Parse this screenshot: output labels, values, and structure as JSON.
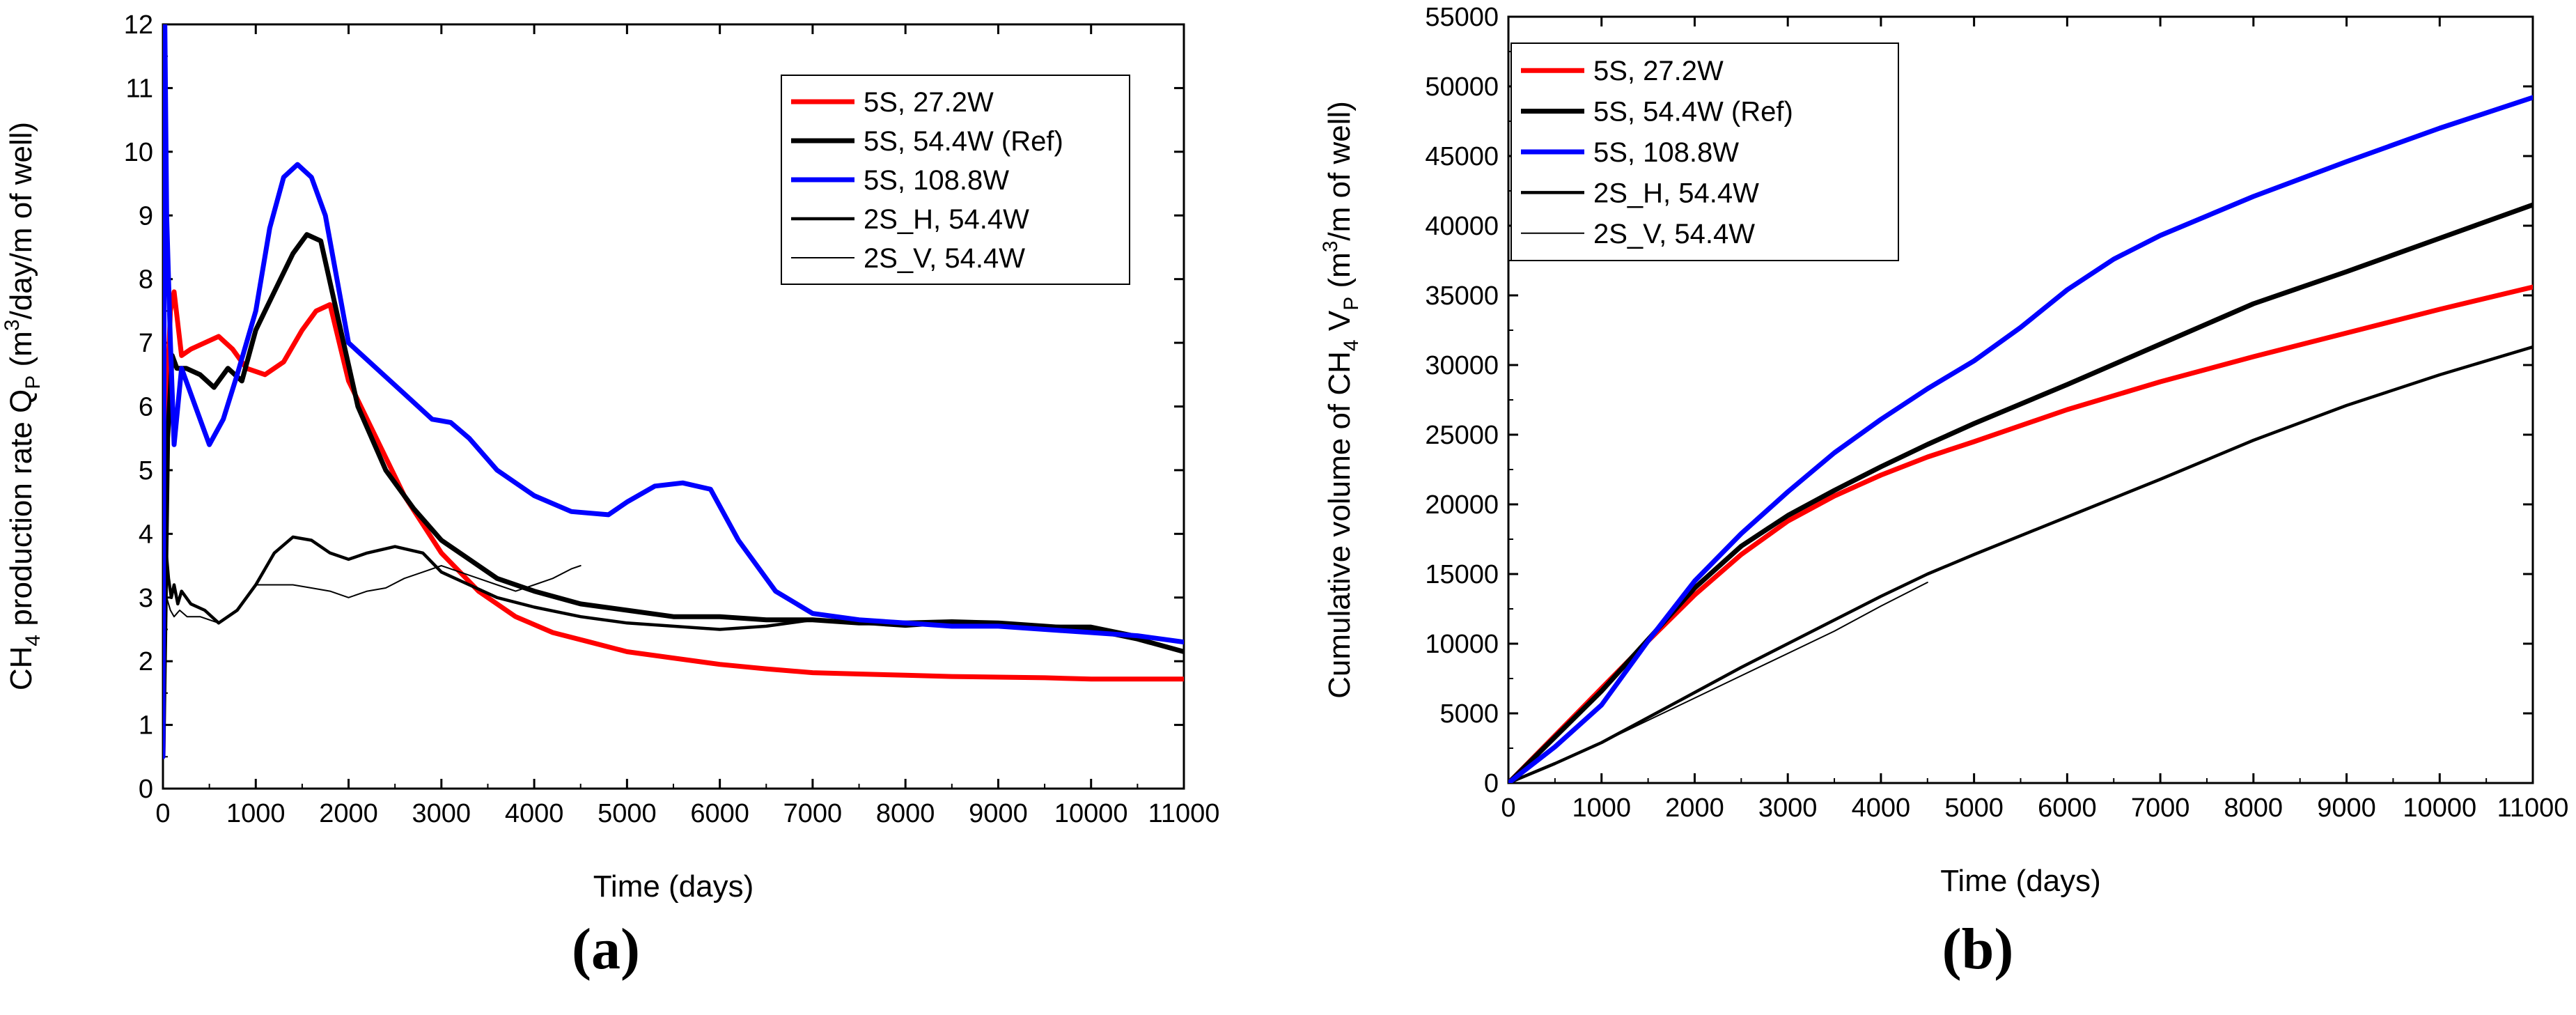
{
  "chart_data": [
    {
      "type": "line",
      "panel_label": "(a)",
      "xlabel": "Time (days)",
      "ylabel": {
        "base": "CH",
        "sub1": "4",
        "mid": " production rate Q",
        "sub2": "P",
        "open": " (m",
        "sup": "3",
        "close": "/day/m of well)"
      },
      "xlim": [
        0,
        11000
      ],
      "ylim": [
        0,
        12
      ],
      "xticks": [
        0,
        1000,
        2000,
        3000,
        4000,
        5000,
        6000,
        7000,
        8000,
        9000,
        10000,
        11000
      ],
      "yticks": [
        0,
        1,
        2,
        3,
        4,
        5,
        6,
        7,
        8,
        9,
        10,
        11,
        12
      ],
      "legend_position": "top-right",
      "series": [
        {
          "name": "5S, 27.2W",
          "color": "#ff0000",
          "weight": "thick",
          "x": [
            0,
            40,
            80,
            120,
            200,
            300,
            450,
            600,
            750,
            900,
            1100,
            1300,
            1500,
            1650,
            1800,
            2000,
            2300,
            2600,
            3000,
            3400,
            3800,
            4200,
            4600,
            5000,
            5500,
            6000,
            6500,
            7000,
            7500,
            8000,
            8500,
            9000,
            9500,
            10000,
            10500,
            11000
          ],
          "y": [
            0.5,
            6.0,
            7.5,
            7.8,
            6.8,
            6.9,
            7.0,
            7.1,
            6.9,
            6.6,
            6.5,
            6.7,
            7.2,
            7.5,
            7.6,
            6.4,
            5.5,
            4.6,
            3.7,
            3.1,
            2.7,
            2.45,
            2.3,
            2.15,
            2.05,
            1.95,
            1.88,
            1.82,
            1.8,
            1.78,
            1.76,
            1.75,
            1.74,
            1.72,
            1.72,
            1.72
          ]
        },
        {
          "name": "5S, 54.4W (Ref)",
          "color": "#000000",
          "weight": "thick",
          "x": [
            0,
            50,
            100,
            150,
            250,
            400,
            550,
            700,
            850,
            1000,
            1200,
            1400,
            1550,
            1700,
            1900,
            2100,
            2400,
            2700,
            3000,
            3300,
            3600,
            4000,
            4500,
            5000,
            5500,
            6000,
            6500,
            7000,
            7500,
            8000,
            8500,
            9000,
            9500,
            10000,
            10500,
            11000
          ],
          "y": [
            0.5,
            5.5,
            6.8,
            6.6,
            6.6,
            6.5,
            6.3,
            6.6,
            6.4,
            7.2,
            7.8,
            8.4,
            8.7,
            8.6,
            7.3,
            6.0,
            5.0,
            4.4,
            3.9,
            3.6,
            3.3,
            3.1,
            2.9,
            2.8,
            2.7,
            2.7,
            2.65,
            2.65,
            2.6,
            2.6,
            2.62,
            2.6,
            2.55,
            2.5,
            2.35,
            2.15
          ]
        },
        {
          "name": "5S, 108.8W",
          "color": "#0000ff",
          "weight": "thick",
          "x": [
            0,
            20,
            40,
            80,
            120,
            200,
            350,
            500,
            650,
            800,
            1000,
            1150,
            1300,
            1450,
            1600,
            1750,
            2000,
            2300,
            2600,
            2900,
            3100,
            3300,
            3600,
            4000,
            4400,
            4800,
            5000,
            5300,
            5600,
            5900,
            6200,
            6600,
            7000,
            7500,
            8000,
            8500,
            9000,
            9500,
            10000,
            10500,
            11000
          ],
          "y": [
            0.5,
            12.0,
            9.0,
            7.0,
            5.4,
            6.6,
            6.0,
            5.4,
            5.8,
            6.5,
            7.5,
            8.8,
            9.6,
            9.8,
            9.6,
            9.0,
            7.0,
            6.6,
            6.2,
            5.8,
            5.75,
            5.5,
            5.0,
            4.6,
            4.35,
            4.3,
            4.5,
            4.75,
            4.8,
            4.7,
            3.9,
            3.1,
            2.75,
            2.65,
            2.6,
            2.55,
            2.55,
            2.5,
            2.45,
            2.4,
            2.3
          ]
        },
        {
          "name": "2S_H, 54.4W",
          "color": "#000000",
          "weight": "medium",
          "x": [
            0,
            30,
            60,
            90,
            120,
            160,
            200,
            300,
            450,
            600,
            800,
            1000,
            1200,
            1400,
            1600,
            1800,
            2000,
            2200,
            2500,
            2800,
            3000,
            3300,
            3600,
            4000,
            4500,
            5000,
            5500,
            6000,
            6500,
            7000,
            7500,
            8000,
            8500,
            9000,
            9500,
            10000,
            10500,
            11000
          ],
          "y": [
            5.3,
            3.8,
            3.3,
            3.0,
            3.2,
            2.9,
            3.1,
            2.9,
            2.8,
            2.6,
            2.8,
            3.2,
            3.7,
            3.95,
            3.9,
            3.7,
            3.6,
            3.7,
            3.8,
            3.7,
            3.4,
            3.2,
            3.0,
            2.85,
            2.7,
            2.6,
            2.55,
            2.5,
            2.55,
            2.65,
            2.6,
            2.55,
            2.6,
            2.6,
            2.55,
            2.55,
            2.4,
            2.3
          ]
        },
        {
          "name": "2S_V, 54.4W",
          "color": "#000000",
          "weight": "thin",
          "x": [
            0,
            40,
            80,
            120,
            180,
            260,
            400,
            600,
            800,
            1000,
            1200,
            1400,
            1600,
            1800,
            2000,
            2200,
            2400,
            2600,
            2800,
            3000,
            3200,
            3400,
            3600,
            3800,
            4000,
            4200,
            4400,
            4500
          ],
          "y": [
            5.0,
            3.0,
            2.8,
            2.7,
            2.8,
            2.7,
            2.7,
            2.6,
            2.8,
            3.2,
            3.2,
            3.2,
            3.15,
            3.1,
            3.0,
            3.1,
            3.15,
            3.3,
            3.4,
            3.5,
            3.4,
            3.3,
            3.2,
            3.1,
            3.2,
            3.3,
            3.45,
            3.5
          ]
        }
      ]
    },
    {
      "type": "line",
      "panel_label": "(b)",
      "xlabel": "Time (days)",
      "ylabel": {
        "base": "Cumulative volume of CH",
        "sub1": "4",
        "mid": " V",
        "sub2": "P",
        "open": " (m",
        "sup": "3",
        "close": "/m of well)"
      },
      "xlim": [
        0,
        11000
      ],
      "ylim": [
        0,
        55000
      ],
      "xticks": [
        0,
        1000,
        2000,
        3000,
        4000,
        5000,
        6000,
        7000,
        8000,
        9000,
        10000,
        11000
      ],
      "yticks": [
        0,
        5000,
        10000,
        15000,
        20000,
        25000,
        30000,
        35000,
        40000,
        45000,
        50000,
        55000
      ],
      "legend_position": "top-left",
      "series": [
        {
          "name": "5S, 27.2W",
          "color": "#ff0000",
          "weight": "thick",
          "x": [
            0,
            500,
            1000,
            1500,
            2000,
            2500,
            3000,
            3500,
            4000,
            4500,
            5000,
            6000,
            7000,
            8000,
            9000,
            10000,
            11000
          ],
          "y": [
            0,
            3400,
            6800,
            10200,
            13500,
            16400,
            18800,
            20600,
            22100,
            23400,
            24500,
            26800,
            28800,
            30600,
            32300,
            34000,
            35600
          ]
        },
        {
          "name": "5S, 54.4W (Ref)",
          "color": "#000000",
          "weight": "thick",
          "x": [
            0,
            500,
            1000,
            1500,
            2000,
            2500,
            3000,
            3500,
            4000,
            4500,
            5000,
            6000,
            7000,
            8000,
            9000,
            10000,
            11000
          ],
          "y": [
            0,
            3300,
            6600,
            10300,
            14000,
            17000,
            19200,
            21000,
            22700,
            24300,
            25800,
            28600,
            31500,
            34400,
            36700,
            39100,
            41500
          ]
        },
        {
          "name": "5S, 108.8W",
          "color": "#0000ff",
          "weight": "thick",
          "x": [
            0,
            500,
            1000,
            1500,
            2000,
            2500,
            3000,
            3500,
            4000,
            4500,
            5000,
            5500,
            6000,
            6500,
            7000,
            8000,
            9000,
            10000,
            11000
          ],
          "y": [
            0,
            2600,
            5600,
            10200,
            14500,
            17900,
            20900,
            23700,
            26100,
            28300,
            30300,
            32700,
            35400,
            37600,
            39300,
            42100,
            44600,
            47000,
            49200
          ]
        },
        {
          "name": "2S_H, 54.4W",
          "color": "#000000",
          "weight": "medium",
          "x": [
            0,
            500,
            1000,
            1500,
            2000,
            2500,
            3000,
            3500,
            4000,
            4500,
            5000,
            6000,
            7000,
            8000,
            9000,
            10000,
            11000
          ],
          "y": [
            0,
            1400,
            2900,
            4700,
            6500,
            8300,
            10000,
            11700,
            13400,
            15000,
            16400,
            19100,
            21800,
            24600,
            27100,
            29300,
            31300
          ]
        },
        {
          "name": "2S_V, 54.4W",
          "color": "#000000",
          "weight": "thin",
          "x": [
            0,
            500,
            1000,
            1500,
            2000,
            2500,
            3000,
            3500,
            4000,
            4500
          ],
          "y": [
            0,
            1400,
            2900,
            4500,
            6100,
            7700,
            9300,
            10900,
            12700,
            14400
          ]
        }
      ]
    }
  ]
}
